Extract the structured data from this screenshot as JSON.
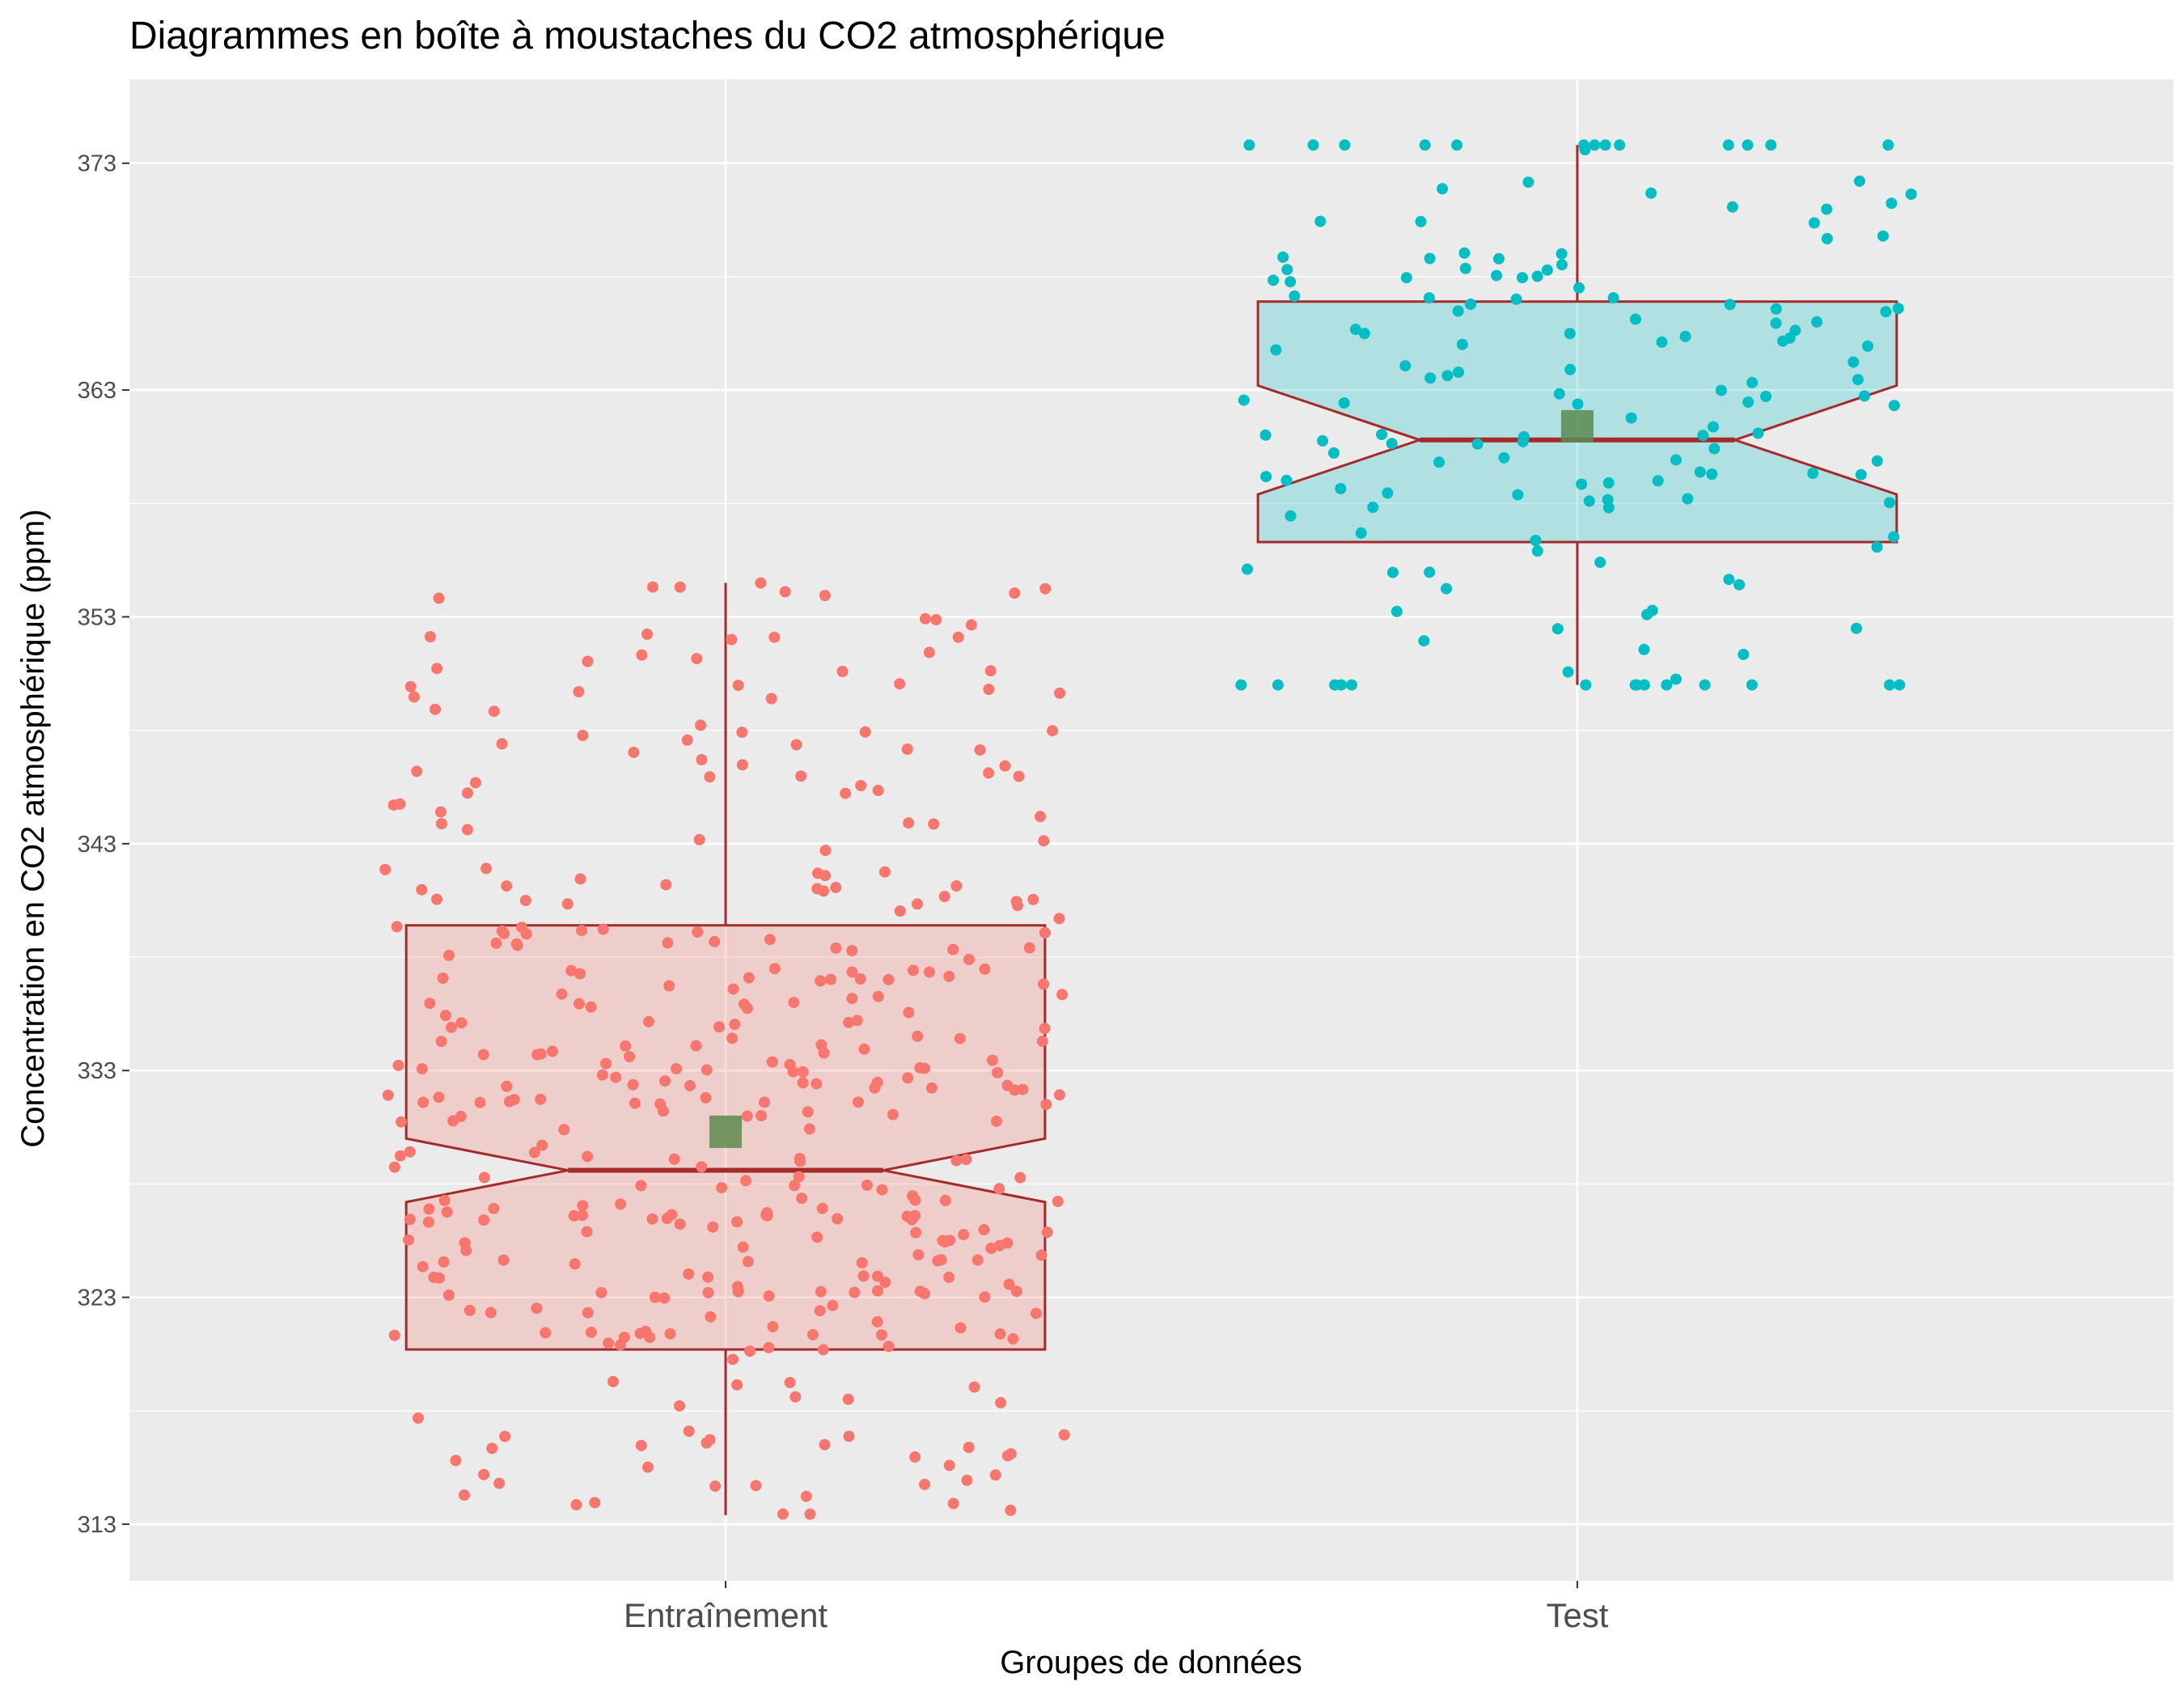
{
  "chart_data": {
    "type": "boxplot",
    "title": "Diagrammes en boîte à moustaches du CO2 atmosphérique",
    "xlabel": "Groupes de données",
    "ylabel": "Concentration en CO2 atmosphérique (ppm)",
    "categories": [
      "Entraînement",
      "Test"
    ],
    "yticks": [
      "313",
      "323",
      "333",
      "343",
      "353",
      "363",
      "373"
    ],
    "ylim": [
      310.5,
      376.7
    ],
    "grid": true,
    "notched": true,
    "jitter_points": true,
    "colors": {
      "panel_background": "#EBEBEB",
      "gridline": "#FFFFFF",
      "box_outline": "#A52A2A",
      "mean_marker": "#5A8A4F",
      "axis_text": "#4D4D4D"
    },
    "series": [
      {
        "category": "Entraînement",
        "point_color": "#F8766D",
        "box_fill": "#F8766D",
        "n_points_approx": 390,
        "whisker_low": 313.4,
        "q1": 320.7,
        "median": 328.6,
        "q3": 339.4,
        "whisker_high": 354.5,
        "notch_low": 327.2,
        "notch_high": 330.0,
        "mean": 330.3
      },
      {
        "category": "Test",
        "point_color": "#00BFC4",
        "box_fill": "#00BFC4",
        "n_points_approx": 156,
        "whisker_low": 350.0,
        "q1": 356.3,
        "median": 360.8,
        "q3": 366.9,
        "whisker_high": 373.8,
        "notch_low": 358.4,
        "notch_high": 363.2,
        "mean": 361.4
      }
    ]
  }
}
